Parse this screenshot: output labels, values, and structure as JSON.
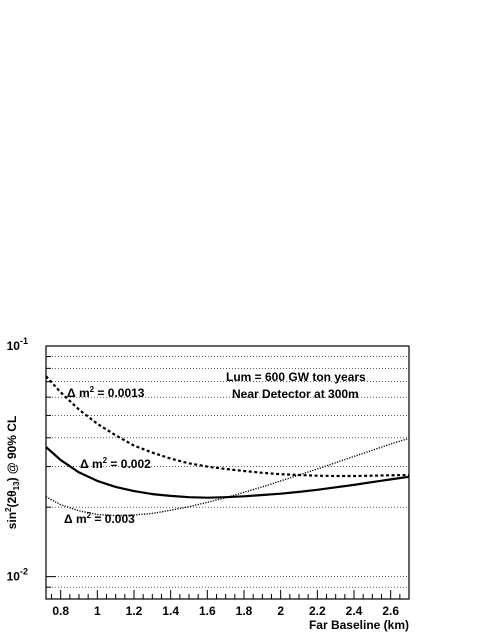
{
  "chart_data": {
    "type": "line",
    "title": "",
    "xlabel": "Far Baseline (km)",
    "ylabel": "sin²(2θ₁₃) @ 90% CL",
    "xlim": [
      0.72,
      2.7
    ],
    "ylim": [
      0.008,
      0.1
    ],
    "yscale": "log",
    "grid": "horizontal-dotted",
    "x_ticks": [
      0.8,
      1,
      1.2,
      1.4,
      1.6,
      1.8,
      2,
      2.2,
      2.4,
      2.6
    ],
    "x_tick_labels": [
      "0.8",
      "1",
      "1.2",
      "1.4",
      "1.6",
      "1.8",
      "2",
      "2.2",
      "2.4",
      "2.6"
    ],
    "y_major_ticks": [
      {
        "value": 0.1,
        "base": "10",
        "exp": "-1"
      },
      {
        "value": 0.01,
        "base": "10",
        "exp": "-2"
      }
    ],
    "annotations": [
      "Lum = 600 GW ton years",
      "Near Detector at 300m"
    ],
    "series": [
      {
        "label": "Δ m² = 0.0013",
        "style": "dashed",
        "x": [
          0.72,
          0.8,
          0.9,
          1.0,
          1.1,
          1.2,
          1.3,
          1.4,
          1.5,
          1.6,
          1.7,
          1.8,
          1.9,
          2.0,
          2.1,
          2.2,
          2.3,
          2.4,
          2.5,
          2.6,
          2.7
        ],
        "y": [
          0.074,
          0.063,
          0.053,
          0.046,
          0.041,
          0.037,
          0.0345,
          0.0325,
          0.031,
          0.03,
          0.0293,
          0.0287,
          0.0282,
          0.0278,
          0.0276,
          0.0274,
          0.0273,
          0.0273,
          0.0274,
          0.0275,
          0.0276
        ]
      },
      {
        "label": "Δ m² = 0.002",
        "style": "solid",
        "x": [
          0.72,
          0.8,
          0.9,
          1.0,
          1.1,
          1.2,
          1.3,
          1.4,
          1.5,
          1.6,
          1.7,
          1.8,
          1.9,
          2.0,
          2.1,
          2.2,
          2.3,
          2.4,
          2.5,
          2.6,
          2.7
        ],
        "y": [
          0.0365,
          0.032,
          0.0283,
          0.026,
          0.0245,
          0.0235,
          0.0228,
          0.0224,
          0.0221,
          0.022,
          0.0221,
          0.0223,
          0.0226,
          0.0229,
          0.0233,
          0.0238,
          0.0244,
          0.025,
          0.0257,
          0.0264,
          0.0271
        ]
      },
      {
        "label": "Δ m² = 0.003",
        "style": "dotted",
        "x": [
          0.72,
          0.8,
          0.9,
          1.0,
          1.1,
          1.2,
          1.3,
          1.4,
          1.5,
          1.6,
          1.7,
          1.8,
          1.9,
          2.0,
          2.1,
          2.2,
          2.3,
          2.4,
          2.5,
          2.6,
          2.7
        ],
        "y": [
          0.0222,
          0.0205,
          0.0193,
          0.0186,
          0.0184,
          0.0185,
          0.0188,
          0.0194,
          0.0201,
          0.021,
          0.022,
          0.0232,
          0.0245,
          0.026,
          0.0276,
          0.0293,
          0.0312,
          0.0332,
          0.0353,
          0.0376,
          0.0398
        ]
      }
    ],
    "series_labels_display": [
      {
        "prefix": "Δ m",
        "sup": "2",
        "suffix": " = 0.0013"
      },
      {
        "prefix": "Δ m",
        "sup": "2",
        "suffix": " = 0.002"
      },
      {
        "prefix": "Δ m",
        "sup": "2",
        "suffix": " = 0.003"
      }
    ]
  }
}
